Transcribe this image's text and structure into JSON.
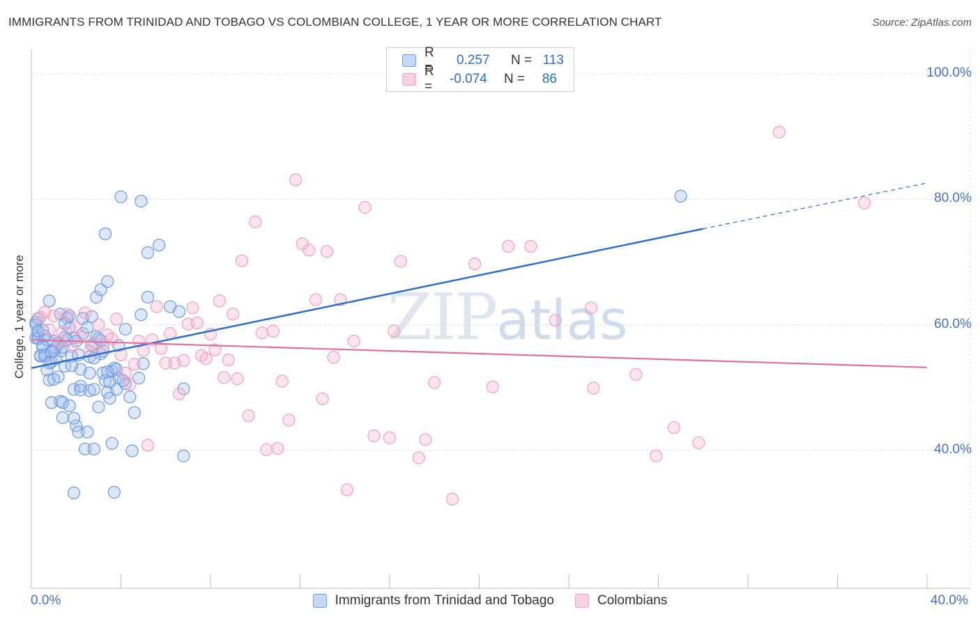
{
  "title": "IMMIGRANTS FROM TRINIDAD AND TOBAGO VS COLOMBIAN COLLEGE, 1 YEAR OR MORE CORRELATION CHART",
  "source": "Source: ZipAtlas.com",
  "watermark": {
    "zip": "ZIP",
    "atlas": "atlas"
  },
  "legend": {
    "r_label": "R =",
    "n_label": "N =",
    "rows": [
      {
        "r": "0.257",
        "n": "113"
      },
      {
        "r": "-0.074",
        "n": "86"
      }
    ]
  },
  "chart_data": {
    "type": "scatter",
    "title": "IMMIGRANTS FROM TRINIDAD AND TOBAGO VS COLOMBIAN COLLEGE, 1 YEAR OR MORE CORRELATION CHART",
    "xlabel": "",
    "ylabel": "College, 1 year or more",
    "xlim": [
      0,
      40
    ],
    "ylim": [
      18,
      104
    ],
    "x_tick_labels": {
      "left": "0.0%",
      "right": "40.0%"
    },
    "y_ticks": [
      40,
      60,
      80,
      100
    ],
    "y_tick_labels": [
      "40.0%",
      "60.0%",
      "80.0%",
      "100.0%"
    ],
    "colors": {
      "blue": "#6a9ae0",
      "blue_line": "#2a6fd0",
      "pink": "#f0a0bd",
      "pink_line": "#e0709a",
      "label": "#4472c4"
    },
    "series": [
      {
        "name": "Immigrants from Trinidad and Tobago",
        "color": "#6a9ae0",
        "r": 0.257,
        "n": 113,
        "trend": {
          "x0": 0,
          "y0": 53.1,
          "x1": 30,
          "y1": 75.3,
          "dash_to": 40,
          "dash_y": 82.6
        },
        "points": [
          [
            0.2,
            60.4
          ],
          [
            0.3,
            58.7
          ],
          [
            0.2,
            57.9
          ],
          [
            0.4,
            55.0
          ],
          [
            0.5,
            59.2
          ],
          [
            0.5,
            56.8
          ],
          [
            0.3,
            61.0
          ],
          [
            0.6,
            55.3
          ],
          [
            0.7,
            52.8
          ],
          [
            0.8,
            63.8
          ],
          [
            0.8,
            51.2
          ],
          [
            0.9,
            54.1
          ],
          [
            1.0,
            57.4
          ],
          [
            0.9,
            47.6
          ],
          [
            1.1,
            56.3
          ],
          [
            1.2,
            51.7
          ],
          [
            1.3,
            47.8
          ],
          [
            1.3,
            61.7
          ],
          [
            1.3,
            55.8
          ],
          [
            1.4,
            45.2
          ],
          [
            1.5,
            53.4
          ],
          [
            1.5,
            58.0
          ],
          [
            1.6,
            61.1
          ],
          [
            1.7,
            47.1
          ],
          [
            1.7,
            59.5
          ],
          [
            1.8,
            55.0
          ],
          [
            1.9,
            57.9
          ],
          [
            1.9,
            49.7
          ],
          [
            2.0,
            43.9
          ],
          [
            2.1,
            42.9
          ],
          [
            2.2,
            52.9
          ],
          [
            2.2,
            50.2
          ],
          [
            2.3,
            58.6
          ],
          [
            2.4,
            40.2
          ],
          [
            2.5,
            42.9
          ],
          [
            2.6,
            49.5
          ],
          [
            2.6,
            54.9
          ],
          [
            2.7,
            56.8
          ],
          [
            2.8,
            49.7
          ],
          [
            2.8,
            40.2
          ],
          [
            2.9,
            64.4
          ],
          [
            2.9,
            58.1
          ],
          [
            3.0,
            46.9
          ],
          [
            3.1,
            65.6
          ],
          [
            3.1,
            55.4
          ],
          [
            3.2,
            52.3
          ],
          [
            3.1,
            57.5
          ],
          [
            3.3,
            74.5
          ],
          [
            3.3,
            51.1
          ],
          [
            3.4,
            66.9
          ],
          [
            3.4,
            49.2
          ],
          [
            3.5,
            48.3
          ],
          [
            3.6,
            41.1
          ],
          [
            3.6,
            52.6
          ],
          [
            3.7,
            33.3
          ],
          [
            3.7,
            53.1
          ],
          [
            3.8,
            49.7
          ],
          [
            3.9,
            56.7
          ],
          [
            3.9,
            51.5
          ],
          [
            4.0,
            80.4
          ],
          [
            4.2,
            59.3
          ],
          [
            4.2,
            50.6
          ],
          [
            4.5,
            39.9
          ],
          [
            4.6,
            46.0
          ],
          [
            4.8,
            51.5
          ],
          [
            4.9,
            61.6
          ],
          [
            5.0,
            53.8
          ],
          [
            4.9,
            79.7
          ],
          [
            5.2,
            71.5
          ],
          [
            5.2,
            64.4
          ],
          [
            5.7,
            72.7
          ],
          [
            6.2,
            62.9
          ],
          [
            6.6,
            62.1
          ],
          [
            6.8,
            49.8
          ],
          [
            6.8,
            39.1
          ],
          [
            0.2,
            60.0
          ],
          [
            0.3,
            57.8
          ],
          [
            0.4,
            55.1
          ],
          [
            0.5,
            56.5
          ],
          [
            0.6,
            55.0
          ],
          [
            0.7,
            57.6
          ],
          [
            0.8,
            53.9
          ],
          [
            1.0,
            55.8
          ],
          [
            1.1,
            54.6
          ],
          [
            1.2,
            57.0
          ],
          [
            1.4,
            56.4
          ],
          [
            1.5,
            60.2
          ],
          [
            1.6,
            57.6
          ],
          [
            1.8,
            53.5
          ],
          [
            1.9,
            45.1
          ],
          [
            2.0,
            57.4
          ],
          [
            2.1,
            55.2
          ],
          [
            2.3,
            61.0
          ],
          [
            2.5,
            59.6
          ],
          [
            2.6,
            52.3
          ],
          [
            2.8,
            54.7
          ],
          [
            3.0,
            57.8
          ],
          [
            3.2,
            55.8
          ],
          [
            3.5,
            50.9
          ],
          [
            3.8,
            52.9
          ],
          [
            4.1,
            51.1
          ],
          [
            4.4,
            48.5
          ],
          [
            0.6,
            58.2
          ],
          [
            1.0,
            51.3
          ],
          [
            1.4,
            47.6
          ],
          [
            1.7,
            61.4
          ],
          [
            1.9,
            33.2
          ],
          [
            2.2,
            49.6
          ],
          [
            2.7,
            61.3
          ],
          [
            3.4,
            52.5
          ],
          [
            0.3,
            59.0
          ],
          [
            0.9,
            55.7
          ],
          [
            29.0,
            80.5
          ]
        ]
      },
      {
        "name": "Colombians",
        "color": "#f0a0bd",
        "r": -0.074,
        "n": 86,
        "trend": {
          "x0": 0,
          "y0": 57.6,
          "x1": 40,
          "y1": 53.2
        },
        "points": [
          [
            0.4,
            61.2
          ],
          [
            0.6,
            62.0
          ],
          [
            0.8,
            59.2
          ],
          [
            1.0,
            61.4
          ],
          [
            1.2,
            57.2
          ],
          [
            1.4,
            58.9
          ],
          [
            1.6,
            61.7
          ],
          [
            1.8,
            56.5
          ],
          [
            2.0,
            59.6
          ],
          [
            2.2,
            58.0
          ],
          [
            2.4,
            61.9
          ],
          [
            2.6,
            55.8
          ],
          [
            2.8,
            57.1
          ],
          [
            3.0,
            60.0
          ],
          [
            3.2,
            56.3
          ],
          [
            3.4,
            58.4
          ],
          [
            3.6,
            57.7
          ],
          [
            3.8,
            60.9
          ],
          [
            4.0,
            55.2
          ],
          [
            4.2,
            52.3
          ],
          [
            4.4,
            50.5
          ],
          [
            4.6,
            53.7
          ],
          [
            4.8,
            57.4
          ],
          [
            5.0,
            55.9
          ],
          [
            5.2,
            40.8
          ],
          [
            5.4,
            57.6
          ],
          [
            5.6,
            62.9
          ],
          [
            5.8,
            56.2
          ],
          [
            6.0,
            53.9
          ],
          [
            6.2,
            58.6
          ],
          [
            6.4,
            53.9
          ],
          [
            6.6,
            49.0
          ],
          [
            6.8,
            54.3
          ],
          [
            7.0,
            60.1
          ],
          [
            7.2,
            62.7
          ],
          [
            7.4,
            60.3
          ],
          [
            7.6,
            55.1
          ],
          [
            7.8,
            54.6
          ],
          [
            8.0,
            58.5
          ],
          [
            8.2,
            56.0
          ],
          [
            8.4,
            63.8
          ],
          [
            8.6,
            51.6
          ],
          [
            8.8,
            54.4
          ],
          [
            9.0,
            61.7
          ],
          [
            9.2,
            51.4
          ],
          [
            9.4,
            70.2
          ],
          [
            9.7,
            45.5
          ],
          [
            10.0,
            76.4
          ],
          [
            10.3,
            58.7
          ],
          [
            10.5,
            40.1
          ],
          [
            10.8,
            59.0
          ],
          [
            11.0,
            40.3
          ],
          [
            11.2,
            51.0
          ],
          [
            11.5,
            44.8
          ],
          [
            11.8,
            83.1
          ],
          [
            12.1,
            72.9
          ],
          [
            12.4,
            71.9
          ],
          [
            12.7,
            64.0
          ],
          [
            13.0,
            48.2
          ],
          [
            13.2,
            71.7
          ],
          [
            13.5,
            54.8
          ],
          [
            13.8,
            64.0
          ],
          [
            14.1,
            33.7
          ],
          [
            14.4,
            57.4
          ],
          [
            14.9,
            78.7
          ],
          [
            15.3,
            42.3
          ],
          [
            16.0,
            42.0
          ],
          [
            16.2,
            59.0
          ],
          [
            16.5,
            70.1
          ],
          [
            17.3,
            38.8
          ],
          [
            17.6,
            41.7
          ],
          [
            18.0,
            50.8
          ],
          [
            18.8,
            32.2
          ],
          [
            19.8,
            69.7
          ],
          [
            20.6,
            50.1
          ],
          [
            21.3,
            72.5
          ],
          [
            22.3,
            72.5
          ],
          [
            23.4,
            60.7
          ],
          [
            25.0,
            62.7
          ],
          [
            25.1,
            49.9
          ],
          [
            27.0,
            52.1
          ],
          [
            27.9,
            39.1
          ],
          [
            28.7,
            43.6
          ],
          [
            29.8,
            41.2
          ],
          [
            33.4,
            90.7
          ],
          [
            37.2,
            79.4
          ]
        ]
      }
    ]
  },
  "bottom_legend": [
    "Immigrants from Trinidad and Tobago",
    "Colombians"
  ]
}
